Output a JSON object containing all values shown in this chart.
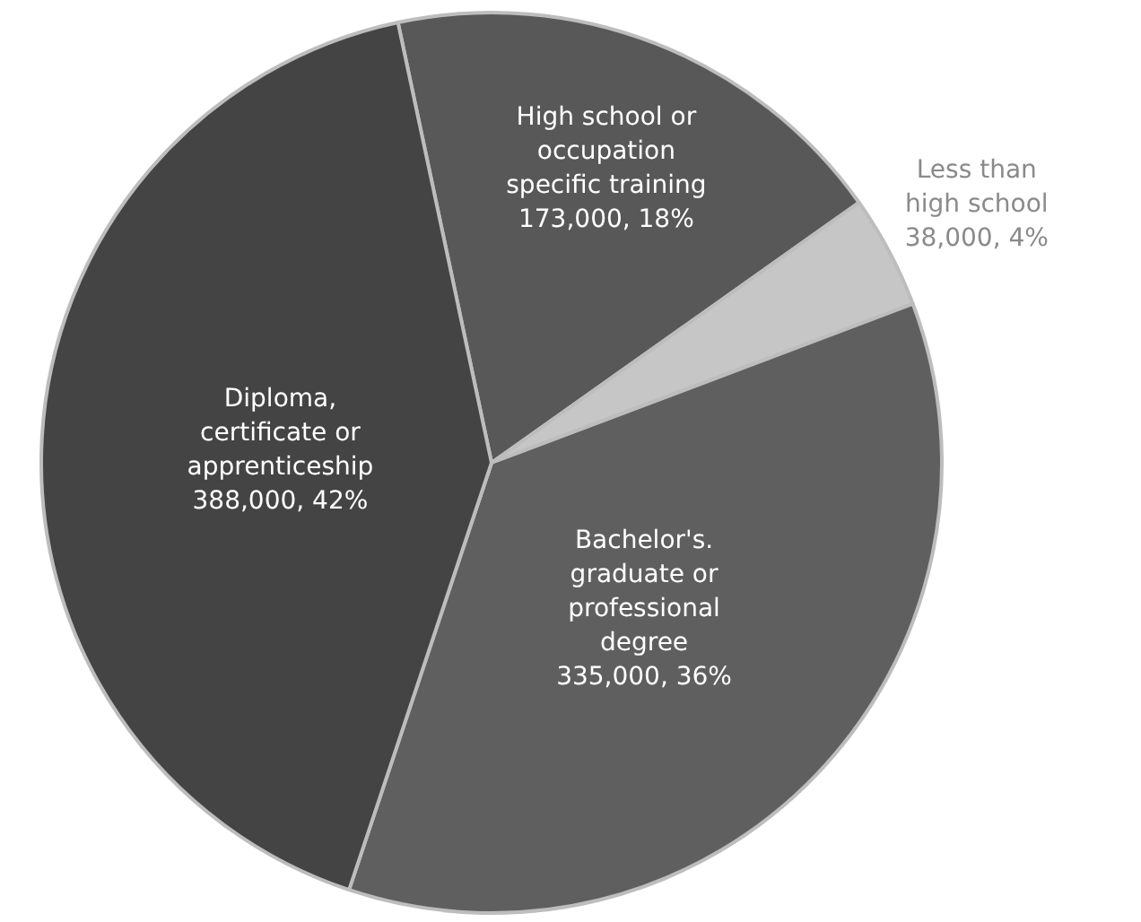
{
  "chart_data": {
    "type": "pie",
    "categories": [
      "High school or occupation specific training",
      "Less than high school",
      "Bachelor's. graduate or professional degree",
      "Diploma, certificate or apprenticeship"
    ],
    "values": [
      173000,
      38000,
      335000,
      388000
    ],
    "value_labels": [
      "173,000, 18%",
      "38,000, 4%",
      "335,000, 36%",
      "388,000, 42%"
    ],
    "colors": [
      "#585858",
      "#c6c6c6",
      "#5f5f5f",
      "#444444"
    ],
    "legend": false
  }
}
